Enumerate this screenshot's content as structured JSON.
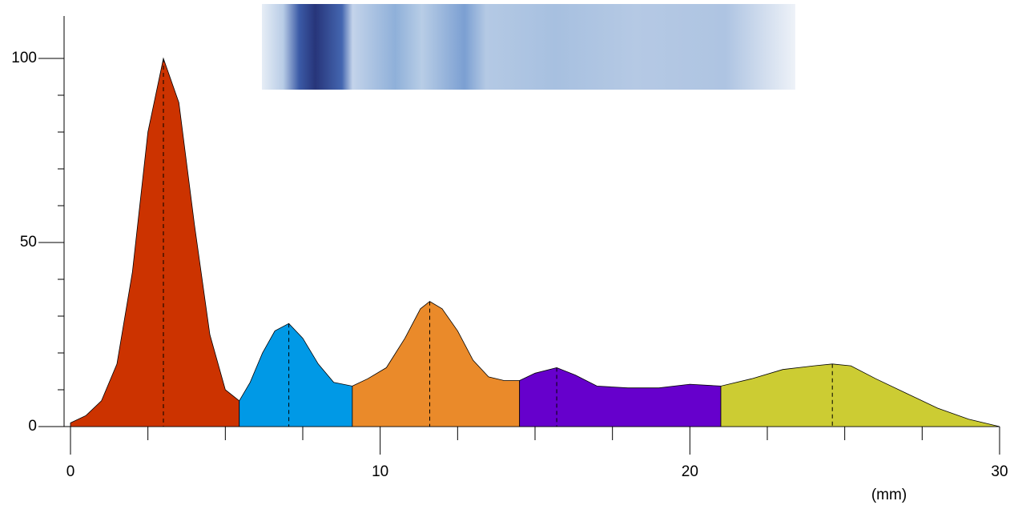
{
  "chart_data": {
    "type": "area",
    "x_label": "(mm)",
    "xlim": [
      0,
      30
    ],
    "xticks": [
      0,
      10,
      20,
      30
    ],
    "xminor": [
      2.5,
      5,
      7.5,
      12.5,
      15,
      17.5,
      22.5,
      25,
      27.5
    ],
    "ylim": [
      0,
      100
    ],
    "yticks": [
      0,
      50,
      100
    ],
    "yminor": [
      10,
      20,
      30,
      40,
      60,
      70,
      80,
      90
    ],
    "series": [
      {
        "color": "#cc3300",
        "x": [
          0,
          0.5,
          1,
          1.5,
          2,
          2.5,
          3,
          3.5,
          4,
          4.5,
          5,
          5.45
        ],
        "values": [
          1,
          3,
          7,
          17,
          42,
          80,
          100,
          88,
          55,
          25,
          10,
          7
        ]
      },
      {
        "color": "#0099e6",
        "x": [
          5.45,
          5.8,
          6.2,
          6.6,
          7.05,
          7.5,
          8,
          8.5,
          9.1
        ],
        "values": [
          7,
          12,
          20,
          26,
          28,
          24,
          17,
          12,
          11
        ]
      },
      {
        "color": "#ea8a2a",
        "x": [
          9.1,
          9.6,
          10.2,
          10.8,
          11.3,
          11.6,
          12,
          12.5,
          13,
          13.5,
          14,
          14.5
        ],
        "values": [
          11,
          13,
          16,
          24,
          32,
          34,
          32,
          26,
          18,
          13.5,
          12.5,
          12.5
        ]
      },
      {
        "color": "#6600cc",
        "x": [
          14.5,
          15,
          15.7,
          16.3,
          17,
          18,
          19,
          19.5,
          20,
          21
        ],
        "values": [
          12.5,
          14.5,
          16,
          14,
          11,
          10.5,
          10.5,
          11,
          11.5,
          11
        ]
      },
      {
        "color": "#cccc33",
        "x": [
          21,
          22,
          23,
          24,
          24.6,
          25.2,
          26,
          27,
          28,
          29,
          30
        ],
        "values": [
          11,
          13,
          15.5,
          16.5,
          17,
          16.5,
          13,
          9,
          5,
          2,
          0
        ]
      }
    ]
  }
}
